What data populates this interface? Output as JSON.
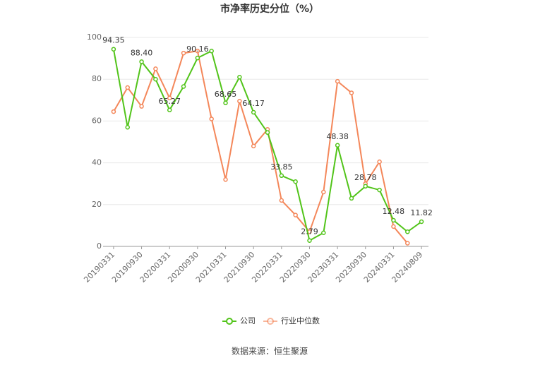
{
  "chart_data": {
    "type": "line",
    "title": "市净率历史分位（%）",
    "categories": [
      "20190331",
      null,
      "20190930",
      null,
      "20200331",
      null,
      "20200930",
      null,
      "20210331",
      null,
      "20210930",
      null,
      "20220331",
      null,
      "20220930",
      null,
      "20230331",
      null,
      "20230930",
      null,
      "20240331",
      null,
      "20240809"
    ],
    "series": [
      {
        "name": "公司",
        "color": "#52c41a",
        "values": [
          94.35,
          57,
          88.4,
          80,
          65.27,
          76.5,
          90.16,
          93.5,
          68.65,
          81,
          64.17,
          54.5,
          33.85,
          31,
          2.79,
          6.5,
          48.38,
          23,
          28.78,
          27,
          12.48,
          7,
          11.82
        ],
        "value_labels": [
          "94.35",
          null,
          "88.40",
          null,
          "65.27",
          null,
          "90.16",
          null,
          "68.65",
          null,
          "64.17",
          null,
          "33.85",
          null,
          "2.79",
          null,
          "48.38",
          null,
          "28.78",
          null,
          "12.48",
          null,
          "11.82"
        ]
      },
      {
        "name": "行业中位数",
        "color": "#f4875a",
        "values": [
          64.5,
          76,
          67,
          85,
          71,
          92.5,
          93.5,
          61,
          32,
          69.5,
          48,
          56,
          22,
          15,
          7,
          26,
          79,
          73.5,
          30,
          40.5,
          9.5,
          1.5,
          null
        ]
      }
    ],
    "ylim": [
      0,
      100
    ],
    "yticks": [
      0,
      20,
      40,
      60,
      80,
      100
    ],
    "grid": true,
    "source": "数据来源：恒生聚源"
  }
}
